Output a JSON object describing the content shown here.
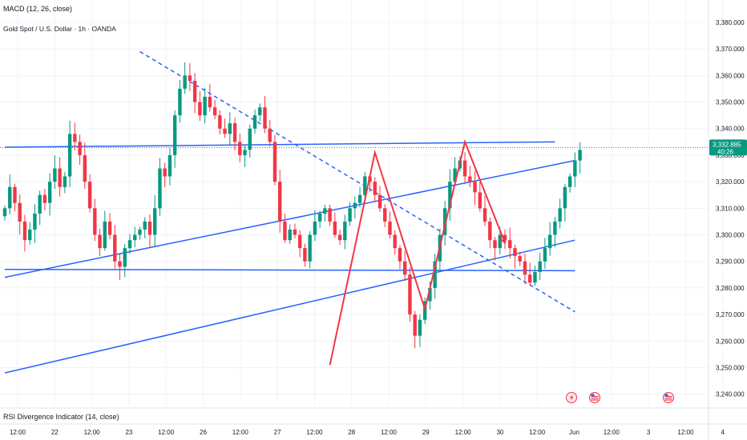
{
  "indicators": {
    "macd": "MACD (12, 26, close)",
    "rsi": "RSI Divergence Indicator (14, close)"
  },
  "chart_title": "Gold Spot / U.S. Dollar · 1h · OANDA",
  "current_price": {
    "value": "3,332.885",
    "countdown": "40:26"
  },
  "icons": [
    "lightning-event-icon",
    "us-flag-event-icon",
    "us-flag-event-icon"
  ],
  "colors": {
    "up": "#089981",
    "down": "#f23645",
    "trendline": "#2962ff",
    "pattern": "#f23645",
    "price_line": "#089981",
    "grid": "#f0f3fa"
  },
  "chart_data": {
    "type": "candlestick",
    "title": "Gold Spot / U.S. Dollar · 1h · OANDA",
    "y_ticks": [
      "3,240.000",
      "3,250.000",
      "3,260.000",
      "3,270.000",
      "3,280.000",
      "3,290.000",
      "3,300.000",
      "3,310.000",
      "3,320.000",
      "3,330.000",
      "3,340.000",
      "3,350.000",
      "3,360.000",
      "3,370.000",
      "3,380.000"
    ],
    "x_ticks": [
      "12:00",
      "22",
      "12:00",
      "23",
      "12:00",
      "26",
      "12:00",
      "27",
      "12:00",
      "28",
      "12:00",
      "29",
      "12:00",
      "30",
      "12:00",
      "Jun",
      "12:00",
      "3",
      "12:00",
      "4"
    ],
    "ylim": [
      3236,
      3383
    ],
    "closes": [
      3310,
      3318,
      3312,
      3305,
      3298,
      3302,
      3308,
      3315,
      3312,
      3320,
      3325,
      3318,
      3322,
      3338,
      3335,
      3330,
      3320,
      3310,
      3300,
      3295,
      3305,
      3300,
      3290,
      3288,
      3295,
      3298,
      3300,
      3302,
      3305,
      3300,
      3310,
      3325,
      3322,
      3330,
      3345,
      3355,
      3360,
      3358,
      3350,
      3345,
      3352,
      3348,
      3345,
      3340,
      3338,
      3342,
      3335,
      3330,
      3332,
      3340,
      3345,
      3348,
      3340,
      3335,
      3320,
      3305,
      3298,
      3302,
      3300,
      3295,
      3290,
      3300,
      3305,
      3308,
      3310,
      3305,
      3300,
      3298,
      3305,
      3310,
      3312,
      3315,
      3322,
      3320,
      3315,
      3310,
      3305,
      3300,
      3295,
      3290,
      3285,
      3270,
      3262,
      3268,
      3275,
      3280,
      3290,
      3300,
      3310,
      3320,
      3325,
      3328,
      3322,
      3320,
      3316,
      3310,
      3305,
      3298,
      3295,
      3300,
      3298,
      3295,
      3292,
      3290,
      3285,
      3282,
      3286,
      3290,
      3295,
      3300,
      3305,
      3310,
      3318,
      3322,
      3328,
      3332
    ],
    "trendlines": [
      {
        "name": "resistance-horizontal",
        "points": [
          [
            0,
            3333
          ],
          [
            110,
            3335
          ]
        ]
      },
      {
        "name": "support-horizontal",
        "points": [
          [
            0,
            3287
          ],
          [
            114,
            3286.5
          ]
        ]
      },
      {
        "name": "rising-channel-upper",
        "points": [
          [
            0,
            3284
          ],
          [
            114,
            3328
          ]
        ]
      },
      {
        "name": "rising-channel-lower",
        "points": [
          [
            0,
            3248
          ],
          [
            114,
            3298
          ]
        ]
      },
      {
        "name": "descending-dashed",
        "points": [
          [
            27,
            3369
          ],
          [
            114,
            3271
          ]
        ],
        "dashed": true
      }
    ],
    "pattern_path": [
      [
        65,
        3251
      ],
      [
        74,
        3331
      ],
      [
        84,
        3272
      ],
      [
        92,
        3335
      ],
      [
        100,
        3297
      ]
    ]
  }
}
